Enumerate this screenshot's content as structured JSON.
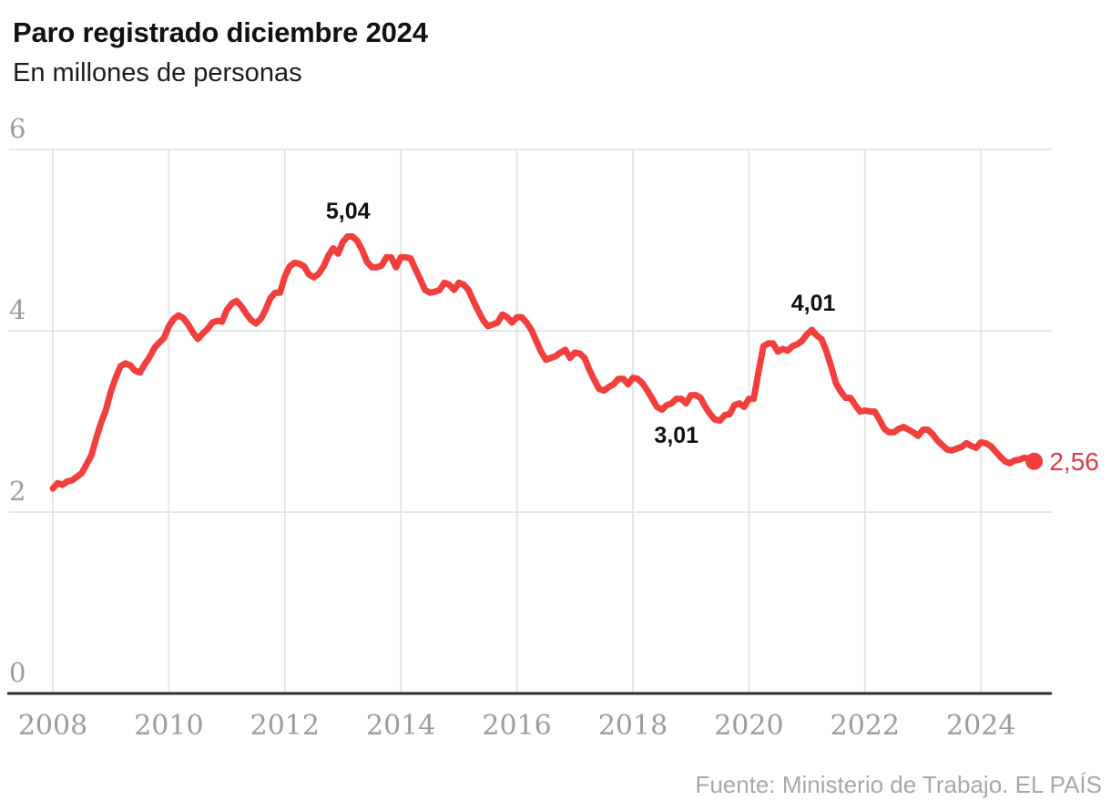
{
  "header": {
    "title": "Paro registrado diciembre 2024",
    "subtitle": "En millones de personas"
  },
  "footer": {
    "text": "Fuente: Ministerio de Trabajo. EL PAÍS"
  },
  "colors": {
    "line": "#f23f3c",
    "end_label": "#e2383f",
    "grid": "#e6e6e6",
    "tick_label": "#9d9d9d",
    "axis_line": "#2f2f2f",
    "annotation": "#111111"
  },
  "chart_data": {
    "type": "line",
    "title": "Paro registrado diciembre 2024",
    "ylabel": "En millones de personas",
    "xlabel": "",
    "xlim": [
      2008,
      2025.3
    ],
    "ylim": [
      0,
      6
    ],
    "x_ticks": [
      2008,
      2010,
      2012,
      2014,
      2016,
      2018,
      2020,
      2022,
      2024
    ],
    "y_ticks": [
      6,
      4,
      2,
      0
    ],
    "grid": true,
    "legend": false,
    "series": [
      {
        "name": "Paro registrado (millones de personas)",
        "start_year": 2008,
        "frequency": "monthly",
        "end_label": "2,56",
        "values": [
          2.26,
          2.32,
          2.3,
          2.34,
          2.35,
          2.39,
          2.43,
          2.53,
          2.63,
          2.82,
          2.99,
          3.13,
          3.33,
          3.48,
          3.61,
          3.64,
          3.62,
          3.56,
          3.54,
          3.63,
          3.71,
          3.81,
          3.87,
          3.92,
          4.05,
          4.13,
          4.17,
          4.14,
          4.07,
          3.98,
          3.91,
          3.97,
          4.02,
          4.09,
          4.11,
          4.1,
          4.23,
          4.3,
          4.33,
          4.27,
          4.19,
          4.12,
          4.08,
          4.13,
          4.23,
          4.36,
          4.42,
          4.42,
          4.6,
          4.71,
          4.75,
          4.74,
          4.71,
          4.62,
          4.59,
          4.63,
          4.71,
          4.83,
          4.91,
          4.85,
          4.98,
          5.04,
          5.04,
          4.99,
          4.89,
          4.76,
          4.7,
          4.7,
          4.72,
          4.81,
          4.81,
          4.7,
          4.81,
          4.81,
          4.8,
          4.68,
          4.57,
          4.45,
          4.42,
          4.43,
          4.45,
          4.53,
          4.51,
          4.45,
          4.53,
          4.51,
          4.45,
          4.33,
          4.22,
          4.12,
          4.05,
          4.07,
          4.09,
          4.18,
          4.15,
          4.09,
          4.15,
          4.15,
          4.09,
          4.01,
          3.89,
          3.77,
          3.68,
          3.7,
          3.72,
          3.76,
          3.79,
          3.7,
          3.76,
          3.75,
          3.7,
          3.57,
          3.46,
          3.36,
          3.34,
          3.38,
          3.41,
          3.47,
          3.47,
          3.41,
          3.48,
          3.47,
          3.42,
          3.34,
          3.25,
          3.16,
          3.13,
          3.18,
          3.2,
          3.25,
          3.25,
          3.2,
          3.29,
          3.29,
          3.26,
          3.16,
          3.08,
          3.02,
          3.01,
          3.07,
          3.08,
          3.18,
          3.2,
          3.16,
          3.25,
          3.25,
          3.55,
          3.83,
          3.86,
          3.86,
          3.77,
          3.8,
          3.78,
          3.83,
          3.85,
          3.89,
          3.96,
          4.01,
          3.95,
          3.91,
          3.78,
          3.61,
          3.42,
          3.33,
          3.26,
          3.26,
          3.18,
          3.11,
          3.12,
          3.11,
          3.11,
          3.02,
          2.92,
          2.88,
          2.88,
          2.92,
          2.94,
          2.91,
          2.88,
          2.84,
          2.91,
          2.91,
          2.86,
          2.79,
          2.74,
          2.69,
          2.68,
          2.7,
          2.72,
          2.76,
          2.73,
          2.71,
          2.77,
          2.76,
          2.73,
          2.67,
          2.61,
          2.56,
          2.54,
          2.57,
          2.58,
          2.6,
          2.59,
          2.56
        ]
      }
    ],
    "annotations": [
      {
        "text": "5,04",
        "x": 2013.09,
        "y": 5.32,
        "style": "peak"
      },
      {
        "text": "4,01",
        "x": 2021.11,
        "y": 4.3,
        "style": "peak"
      },
      {
        "text": "3,01",
        "x": 2018.75,
        "y": 2.84,
        "style": "peak"
      },
      {
        "text": "2,56",
        "x": 2025.18,
        "y": 2.55,
        "style": "end"
      }
    ]
  }
}
